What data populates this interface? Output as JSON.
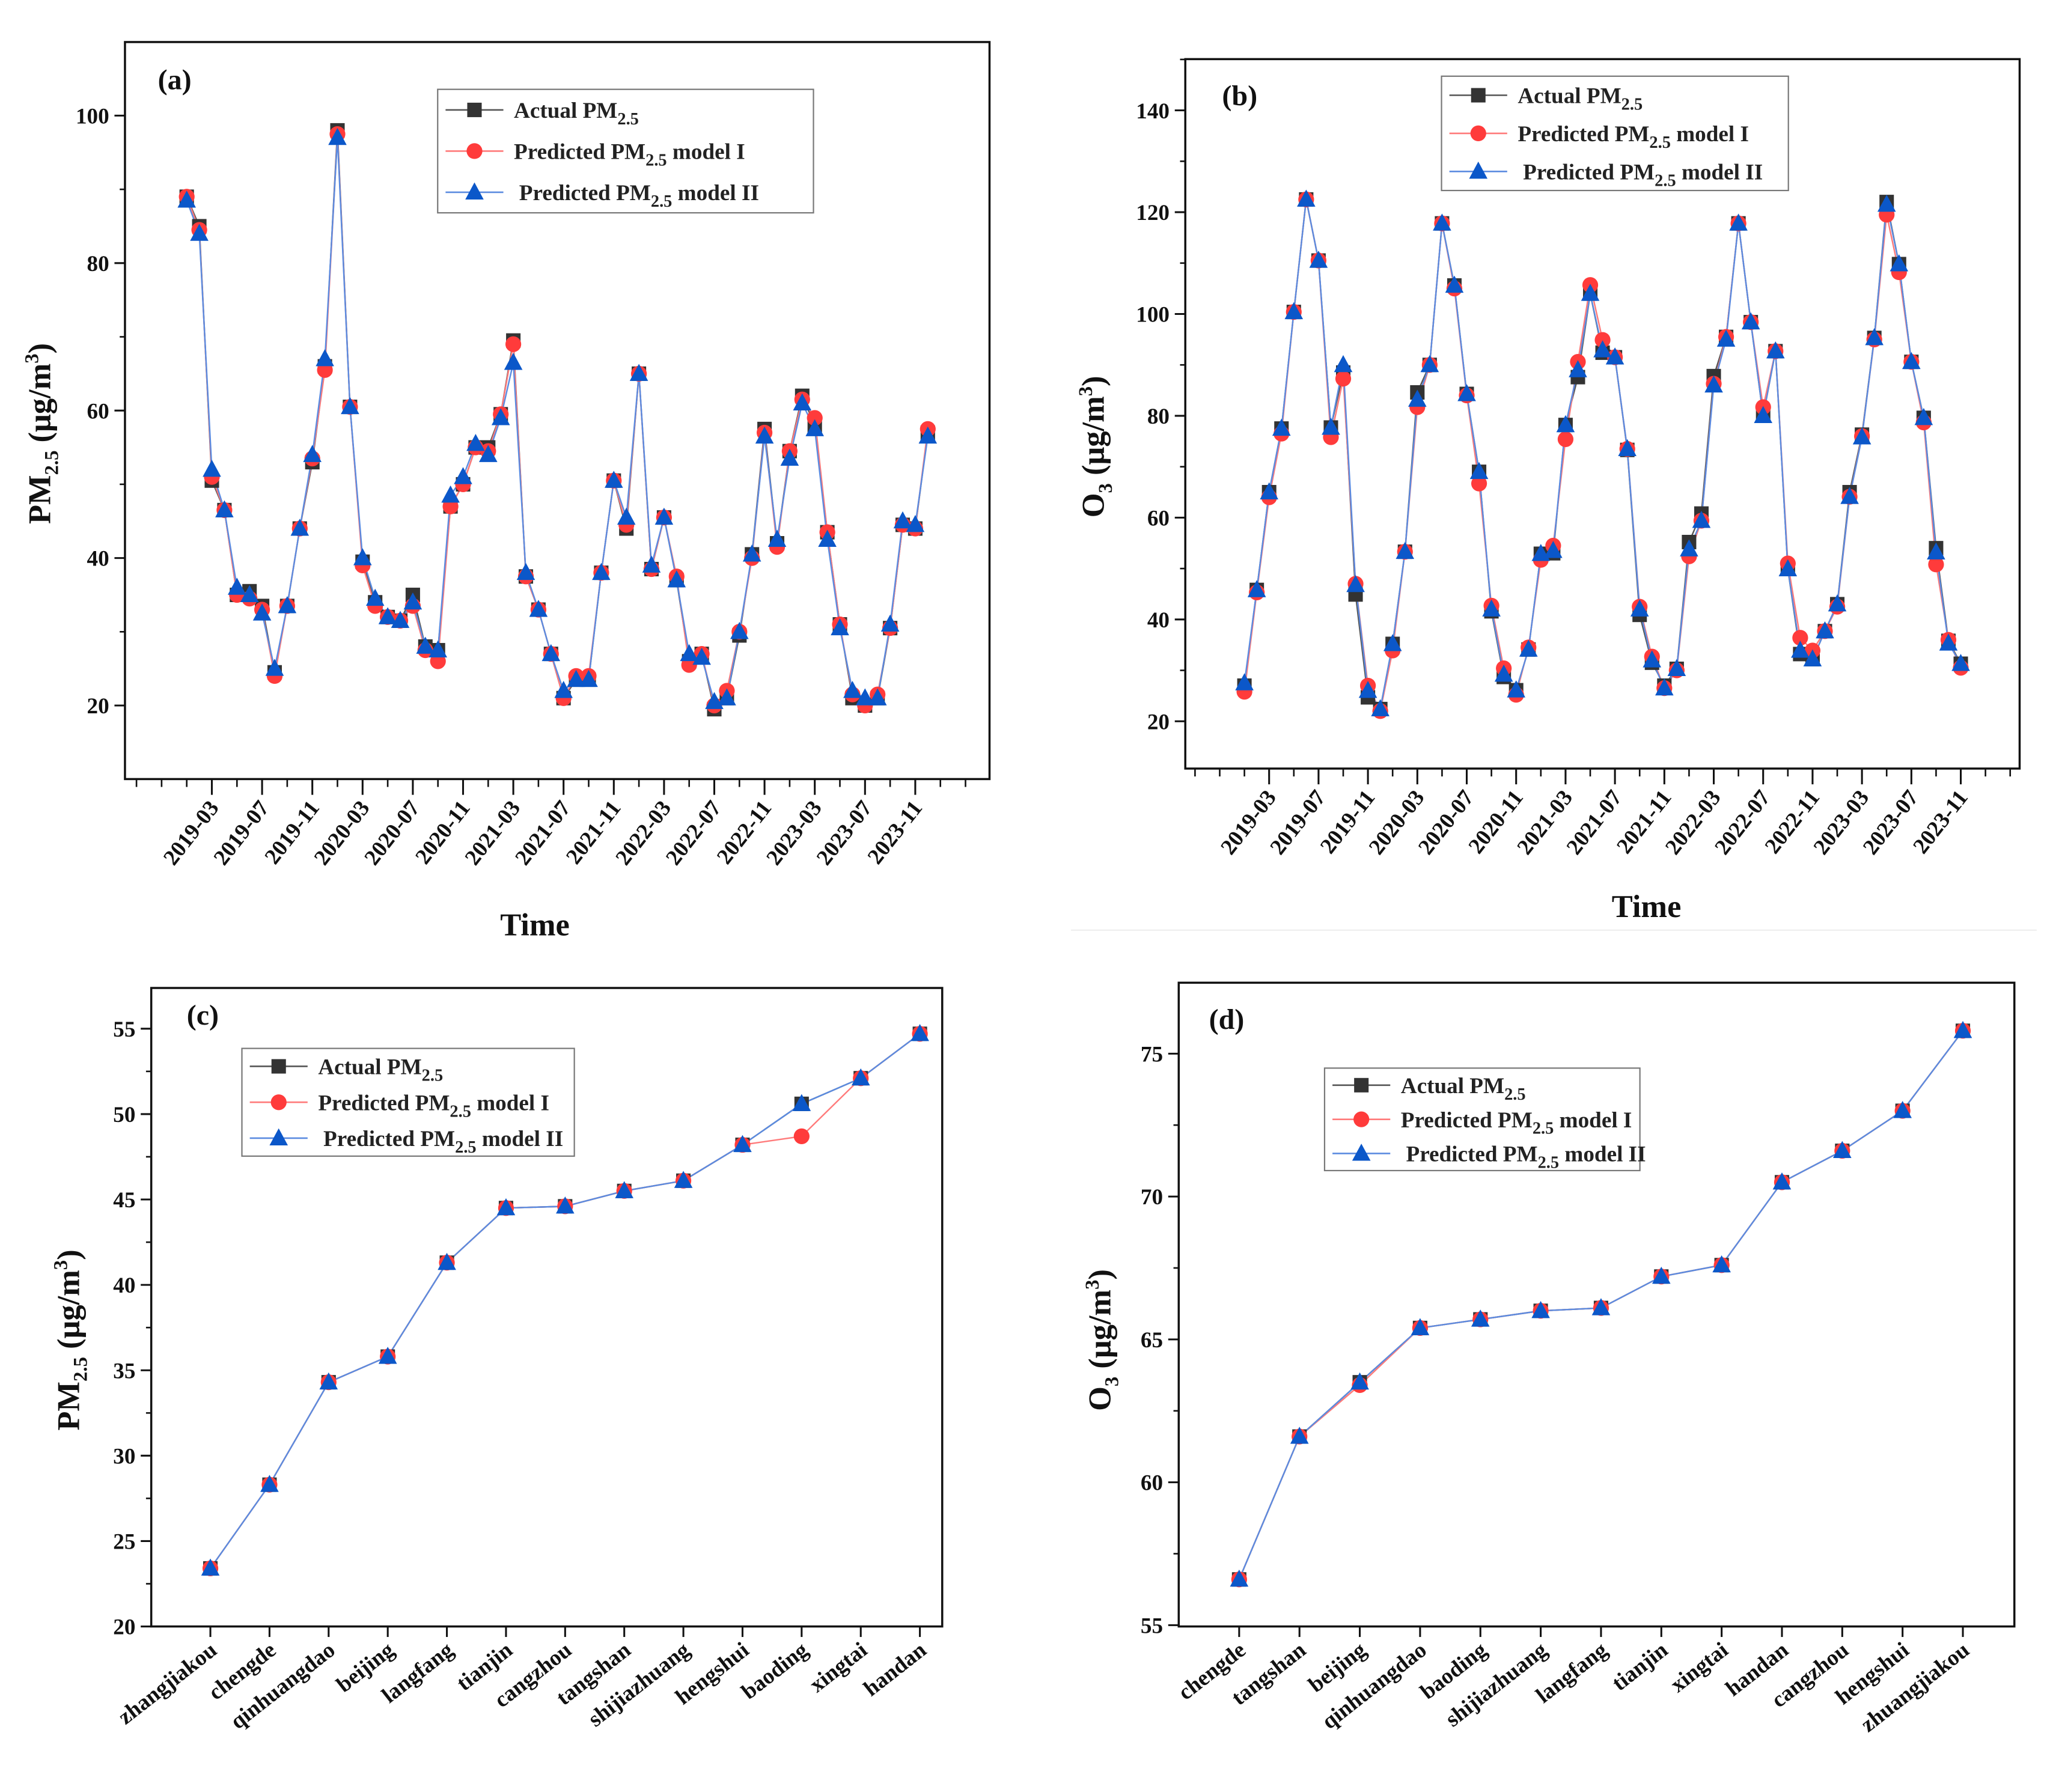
{
  "colors": {
    "actual": "#333333",
    "model1": "#ff3b3b",
    "model2": "#0b57c9",
    "model2_line": "#5b8be0",
    "model1_line": "#ff7a7a",
    "actual_line": "#555555"
  },
  "legend_entries": [
    {
      "pre": "Actual PM",
      "sub": "2.5",
      "post": ""
    },
    {
      "pre": "Predicted PM",
      "sub": "2.5",
      "post": " model I"
    },
    {
      "pre": "Predicted PM",
      "sub": "2.5",
      "post": " model II"
    }
  ],
  "chart_data": [
    {
      "id": "a",
      "type": "line",
      "tag": "(a)",
      "xlabel": "Time",
      "ylabel": {
        "main": "PM",
        "sub": "2.5",
        "unit": " (μg/m",
        "sup": "3",
        "close": ")"
      },
      "x_start": "2019-01",
      "xticks": [
        "2019-03",
        "2019-07",
        "2019-11",
        "2020-03",
        "2020-07",
        "2020-11",
        "2021-03",
        "2021-07",
        "2021-11",
        "2022-03",
        "2022-07",
        "2022-11",
        "2023-03",
        "2023-07",
        "2023-11"
      ],
      "yticks": [
        20,
        40,
        60,
        80,
        100
      ],
      "ylim": [
        10,
        110
      ],
      "grid": false,
      "legend": "top-right",
      "series": [
        {
          "name": "Actual PM2.5",
          "marker": "square",
          "values": [
            89,
            85,
            50.5,
            46.5,
            35,
            35.5,
            33.5,
            24.5,
            33.5,
            44,
            53,
            66,
            98,
            60.5,
            39.5,
            34,
            32,
            31.5,
            35,
            28,
            27.5,
            47,
            50,
            55,
            55,
            59.5,
            69.5,
            37.5,
            33,
            27,
            21,
            23.5,
            23.5,
            38,
            50.5,
            44,
            65,
            38.5,
            45.5,
            37,
            26,
            27,
            19.5,
            21,
            29.5,
            40.5,
            57.5,
            42,
            54.5,
            62,
            58,
            43.5,
            31,
            21,
            20,
            21,
            30.5,
            44.5,
            44,
            57
          ]
        },
        {
          "name": "Predicted PM2.5 model I",
          "marker": "circle",
          "values": [
            89,
            84.5,
            51,
            46.5,
            35,
            34.5,
            33,
            24,
            33.5,
            44,
            53.5,
            65.5,
            97.5,
            60.5,
            39,
            33.5,
            32,
            31.5,
            33.5,
            27.5,
            26,
            47,
            50,
            55,
            54.5,
            59.5,
            69,
            37.5,
            33,
            27,
            21,
            24,
            24,
            38,
            50.5,
            44.5,
            65,
            38.5,
            45.5,
            37.5,
            25.5,
            27,
            20,
            22,
            30,
            40,
            57,
            41.5,
            54.5,
            61.5,
            59,
            43.5,
            31,
            21.5,
            20,
            21.5,
            30.5,
            44.5,
            44,
            57.5
          ]
        },
        {
          "name": "Predicted PM2.5 model II",
          "marker": "triangle",
          "values": [
            88.5,
            84,
            52,
            46.5,
            36,
            35,
            32.5,
            25,
            33.5,
            44,
            54,
            67,
            97,
            60.5,
            40,
            34.5,
            32,
            31.5,
            34,
            28,
            27.5,
            48.5,
            51,
            55.5,
            54,
            59,
            66.5,
            38,
            33,
            27,
            22,
            23.5,
            23.5,
            38,
            50.5,
            45.5,
            65,
            39,
            45.5,
            37,
            27,
            26.5,
            20.5,
            21,
            30,
            40.5,
            56.5,
            42.5,
            53.5,
            61,
            57.5,
            42.5,
            30.5,
            22,
            21,
            21,
            31,
            45,
            44.5,
            56.5
          ]
        }
      ]
    },
    {
      "id": "b",
      "type": "line",
      "tag": "(b)",
      "xlabel": "Time",
      "ylabel": {
        "main": "O",
        "sub": "3",
        "unit": " (μg/m",
        "sup": "3",
        "close": ")"
      },
      "x_start": "2019-01",
      "xticks": [
        "2019-03",
        "2019-07",
        "2019-11",
        "2020-03",
        "2020-07",
        "2020-11",
        "2021-03",
        "2021-07",
        "2021-11",
        "2022-03",
        "2022-07",
        "2022-11",
        "2023-03",
        "2023-07",
        "2023-11"
      ],
      "yticks": [
        20,
        40,
        60,
        80,
        100,
        120,
        140
      ],
      "ylim": [
        10,
        150
      ],
      "grid": false,
      "legend": "top-center",
      "series": [
        {
          "name": "Actual PM2.5",
          "marker": "square",
          "values": [
            27,
            45.8,
            65,
            77.5,
            100.4,
            122.5,
            110.5,
            77.7,
            88.5,
            44.9,
            24.7,
            22.4,
            35.2,
            53.3,
            84.6,
            90,
            117.8,
            105.6,
            84.3,
            69,
            41.6,
            28.7,
            26.1,
            34.1,
            52.9,
            53,
            78.2,
            87.6,
            104,
            92.4,
            91.5,
            73.3,
            40.9,
            31.5,
            27,
            30.3,
            55.2,
            60.8,
            87.8,
            95.5,
            117.8,
            98.4,
            80,
            92.7,
            49.9,
            33.2,
            32.2,
            37.7,
            43,
            65,
            76.3,
            95.3,
            122,
            109.8,
            90.6,
            79.6,
            54,
            35.8,
            31.3
          ]
        },
        {
          "name": "Predicted PM2.5 model I",
          "marker": "circle",
          "values": [
            25.8,
            45.3,
            64,
            76.5,
            100.4,
            122.5,
            110.5,
            75.8,
            87.3,
            47,
            27,
            22,
            33.9,
            53.3,
            81.7,
            90,
            117.8,
            105,
            84,
            66.7,
            42.7,
            30.4,
            25.2,
            34.5,
            51.7,
            54.5,
            75.4,
            90.6,
            105.7,
            94.9,
            91.5,
            73.5,
            42.5,
            32.7,
            26.5,
            30,
            52.4,
            59.4,
            86.3,
            95.5,
            117.8,
            98.4,
            81.7,
            92.7,
            51,
            36.4,
            33.9,
            37.7,
            42.5,
            64.1,
            76,
            95,
            119.5,
            108.2,
            90.6,
            78.7,
            50.8,
            36,
            30.5
          ]
        },
        {
          "name": "Predicted PM2.5 model II",
          "marker": "triangle",
          "values": [
            27.5,
            45.8,
            65,
            77.5,
            100.4,
            122.5,
            110.5,
            77.7,
            90,
            46.8,
            26,
            22.4,
            35.2,
            53.3,
            83.2,
            90,
            117.8,
            105.6,
            84.3,
            69,
            42,
            29.2,
            26.1,
            34.1,
            52.9,
            53.5,
            78.2,
            89,
            104,
            92.9,
            91.5,
            73.5,
            42,
            32,
            26.5,
            30.3,
            53.8,
            59.4,
            86,
            95,
            117.8,
            98.4,
            80,
            92.7,
            49.9,
            33.9,
            32.2,
            37.7,
            43,
            64.1,
            75.8,
            95.3,
            121.5,
            109.8,
            90.6,
            79.6,
            53.2,
            35.3,
            31.3
          ]
        }
      ]
    },
    {
      "id": "c",
      "type": "line",
      "tag": "(c)",
      "xlabel": "",
      "ylabel": {
        "main": "PM",
        "sub": "2.5",
        "unit": " (μg/m",
        "sup": "3",
        "close": ")"
      },
      "categories": [
        "zhangjiakou",
        "chengde",
        "qinhuangdao",
        "beijing",
        "langfang",
        "tianjin",
        "cangzhou",
        "tangshan",
        "shijiazhuang",
        "hengshui",
        "baoding",
        "xingtai",
        "handan"
      ],
      "yticks": [
        20,
        25,
        30,
        35,
        40,
        45,
        50,
        55
      ],
      "ylim": [
        20,
        57.5
      ],
      "grid": false,
      "legend": "top-left",
      "series": [
        {
          "name": "Actual PM2.5",
          "marker": "square",
          "values": [
            23.4,
            28.3,
            34.3,
            35.8,
            41.3,
            44.5,
            44.6,
            45.5,
            46.1,
            48.2,
            50.6,
            52.1,
            54.7
          ]
        },
        {
          "name": "Predicted PM2.5 model I",
          "marker": "circle",
          "values": [
            23.4,
            28.3,
            34.3,
            35.8,
            41.3,
            44.5,
            44.6,
            45.5,
            46.1,
            48.2,
            48.7,
            52.1,
            54.7
          ]
        },
        {
          "name": "Predicted PM2.5 model II",
          "marker": "triangle",
          "values": [
            23.4,
            28.3,
            34.3,
            35.8,
            41.3,
            44.5,
            44.6,
            45.5,
            46.1,
            48.2,
            50.6,
            52.1,
            54.7
          ]
        }
      ]
    },
    {
      "id": "d",
      "type": "line",
      "tag": "(d)",
      "xlabel": "",
      "ylabel": {
        "main": "O",
        "sub": "3",
        "unit": " (μg/m",
        "sup": "3",
        "close": ")"
      },
      "categories": [
        "chengde",
        "tangshan",
        "beijing",
        "qinhuangdao",
        "baoding",
        "shijiazhuang",
        "langfang",
        "tianjin",
        "xingtai",
        "handan",
        "cangzhou",
        "hengshui",
        "zhuangjiakou"
      ],
      "yticks": [
        55,
        60,
        65,
        70,
        75
      ],
      "ylim": [
        55,
        77.5
      ],
      "grid": false,
      "legend": "top-left",
      "series": [
        {
          "name": "Actual PM2.5",
          "marker": "square",
          "values": [
            56.6,
            61.6,
            63.5,
            65.4,
            65.7,
            66.0,
            66.1,
            67.2,
            67.6,
            70.5,
            71.6,
            73.0,
            75.8
          ]
        },
        {
          "name": "Predicted PM2.5 model I",
          "marker": "circle",
          "values": [
            56.6,
            61.6,
            63.4,
            65.4,
            65.7,
            66.0,
            66.1,
            67.2,
            67.6,
            70.5,
            71.6,
            73.0,
            75.8
          ]
        },
        {
          "name": "Predicted PM2.5 model II",
          "marker": "triangle",
          "values": [
            56.6,
            61.6,
            63.5,
            65.4,
            65.7,
            66.0,
            66.1,
            67.2,
            67.6,
            70.5,
            71.6,
            73.0,
            75.8
          ]
        }
      ]
    }
  ]
}
